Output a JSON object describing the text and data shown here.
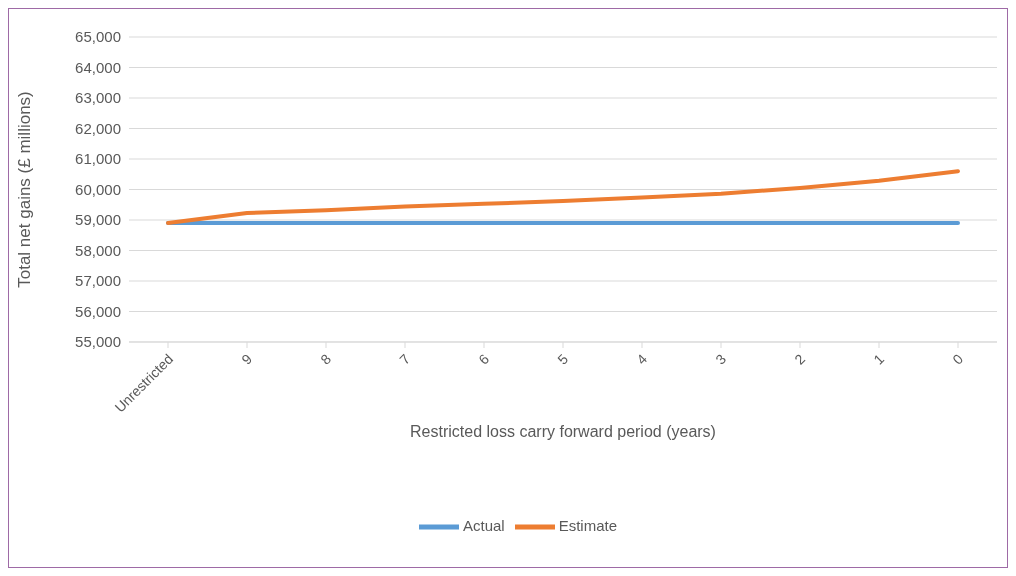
{
  "chart_data": {
    "type": "line",
    "xlabel": "Restricted loss carry forward period (years)",
    "ylabel": "Total net gains (£ millions)",
    "categories": [
      "Unrestricted",
      "9",
      "8",
      "7",
      "6",
      "5",
      "4",
      "3",
      "2",
      "1",
      "0"
    ],
    "series": [
      {
        "name": "Actual",
        "color": "#5b9bd5",
        "values": [
          58900,
          58900,
          58900,
          58900,
          58900,
          58900,
          58900,
          58900,
          58900,
          58900,
          58900
        ]
      },
      {
        "name": "Estimate",
        "color": "#ed7d31",
        "values": [
          58900,
          59230,
          59320,
          59440,
          59530,
          59620,
          59740,
          59860,
          60050,
          60290,
          60600
        ]
      }
    ],
    "ylim": [
      55000,
      65000
    ],
    "yticks": [
      {
        "value": 55000,
        "label": "55,000"
      },
      {
        "value": 56000,
        "label": "56,000"
      },
      {
        "value": 57000,
        "label": "57,000"
      },
      {
        "value": 58000,
        "label": "58,000"
      },
      {
        "value": 59000,
        "label": "59,000"
      },
      {
        "value": 60000,
        "label": "60,000"
      },
      {
        "value": 61000,
        "label": "61,000"
      },
      {
        "value": 62000,
        "label": "62,000"
      },
      {
        "value": 63000,
        "label": "63,000"
      },
      {
        "value": 64000,
        "label": "64,000"
      },
      {
        "value": 65000,
        "label": "65,000"
      }
    ],
    "grid": "y",
    "legend": "bottom",
    "marker": "none"
  }
}
